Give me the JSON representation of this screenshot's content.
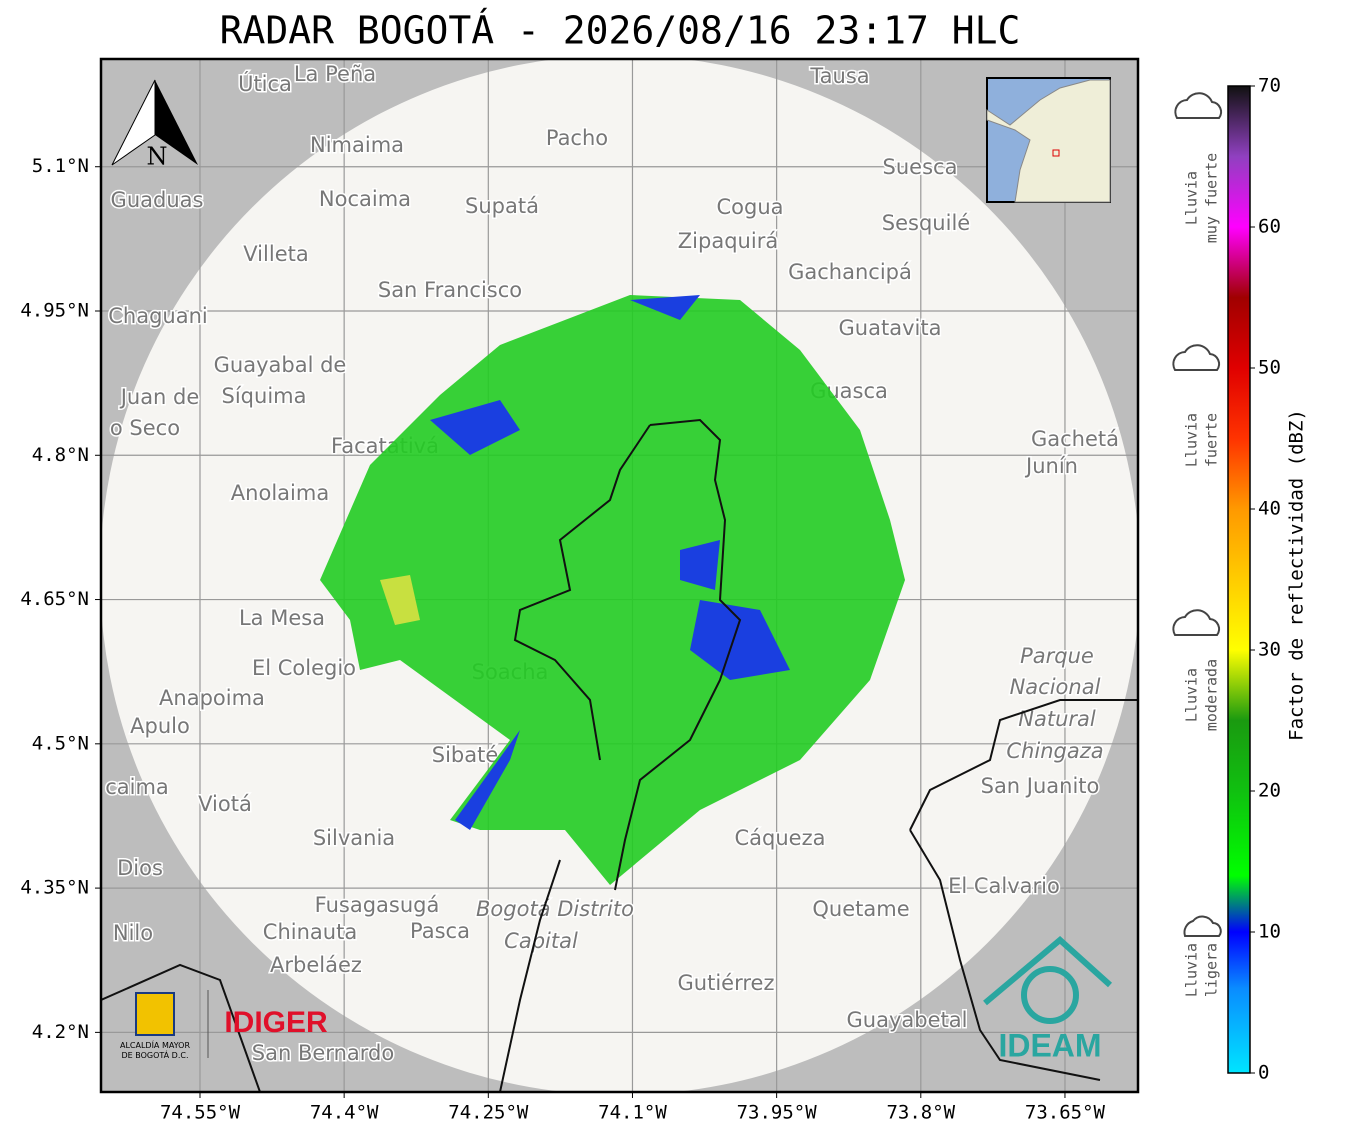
{
  "title": "RADAR BOGOTÁ - 2026/08/16 23:17 HLC",
  "map": {
    "lon_range": [
      -74.653,
      -73.574
    ],
    "lat_range": [
      4.138,
      5.212
    ],
    "lon_ticks": [
      {
        "value": -74.55,
        "label": "74.55°W"
      },
      {
        "value": -74.4,
        "label": "74.4°W"
      },
      {
        "value": -74.25,
        "label": "74.25°W"
      },
      {
        "value": -74.1,
        "label": "74.1°W"
      },
      {
        "value": -73.95,
        "label": "73.95°W"
      },
      {
        "value": -73.8,
        "label": "73.8°W"
      },
      {
        "value": -73.65,
        "label": "73.65°W"
      }
    ],
    "lat_ticks": [
      {
        "value": 5.1,
        "label": "5.1°N"
      },
      {
        "value": 4.95,
        "label": "4.95°N"
      },
      {
        "value": 4.8,
        "label": "4.8°N"
      },
      {
        "value": 4.65,
        "label": "4.65°N"
      },
      {
        "value": 4.5,
        "label": "4.5°N"
      },
      {
        "value": 4.35,
        "label": "4.35°N"
      },
      {
        "value": 4.2,
        "label": "4.2°N"
      }
    ],
    "places": [
      "Útica",
      "La Peña",
      "Tausa",
      "Nimaima",
      "Pacho",
      "Suesca",
      "Guaduas",
      "Nocaima",
      "Supatá",
      "Cogua",
      "Sesquilé",
      "Zipaquirá",
      "Villeta",
      "Gachancipá",
      "San Francisco",
      "Chaguani",
      "Guatavita",
      "Guayabal de",
      "Síquima",
      "Guasca",
      "Juan de",
      "o Seco",
      "Facatativá",
      "Gachetá",
      "Junín",
      "Anolaima",
      "La Mesa",
      "Parque",
      "Nacional",
      "Natural",
      "Chingaza",
      "El Colegio",
      "Soacha",
      "Anapoima",
      "Apulo",
      "Sibaté",
      "San Juanito",
      "caima",
      "Viotá",
      "Silvania",
      "Cáqueza",
      "Dios",
      "El Calvario",
      "Fusagasugá",
      "Bogotá Distrito",
      "Capital",
      "Quetame",
      "Nilo",
      "Chinauta",
      "Pasca",
      "Arbeláez",
      "Gutiérrez",
      "Guayabetal",
      "San Bernardo"
    ]
  },
  "north_label": "N",
  "colorbar": {
    "range": [
      0,
      70
    ],
    "ticks": [
      0,
      10,
      20,
      30,
      40,
      50,
      60,
      70
    ],
    "label": "Factor de reflectividad (dBZ)",
    "color_stops": [
      {
        "value": 0,
        "color": "#00e5ff"
      },
      {
        "value": 6,
        "color": "#0a8cff"
      },
      {
        "value": 10,
        "color": "#0000ff"
      },
      {
        "value": 14,
        "color": "#00ff00"
      },
      {
        "value": 20,
        "color": "#10c010"
      },
      {
        "value": 25,
        "color": "#1a9a10"
      },
      {
        "value": 30,
        "color": "#ffff00"
      },
      {
        "value": 40,
        "color": "#ff9900"
      },
      {
        "value": 45,
        "color": "#ff3300"
      },
      {
        "value": 50,
        "color": "#e00000"
      },
      {
        "value": 55,
        "color": "#a00000"
      },
      {
        "value": 60,
        "color": "#ff00ff"
      },
      {
        "value": 65,
        "color": "#9040c0"
      },
      {
        "value": 70,
        "color": "#111111"
      }
    ]
  },
  "rain_levels": [
    {
      "lines": [
        "Lluvia",
        "muy fuerte"
      ]
    },
    {
      "lines": [
        "Lluvia",
        "fuerte"
      ]
    },
    {
      "lines": [
        "Lluvia",
        "moderada"
      ]
    },
    {
      "lines": [
        "Lluvia",
        "ligera"
      ]
    }
  ],
  "logos": {
    "alcaldia": [
      "ALCALDÍA MAYOR",
      "DE BOGOTÁ D.C."
    ],
    "idiger": "IDIGER",
    "ideam": "IDEAM"
  }
}
